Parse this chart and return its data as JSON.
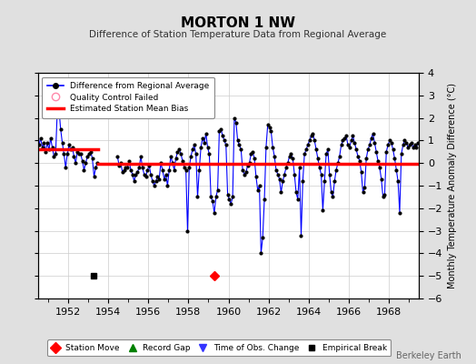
{
  "title": "MORTON 1 NW",
  "subtitle": "Difference of Station Temperature Data from Regional Average",
  "ylabel": "Monthly Temperature Anomaly Difference (°C)",
  "xlim": [
    1950.5,
    1969.5
  ],
  "ylim": [
    -6,
    4
  ],
  "yticks": [
    -6,
    -5,
    -4,
    -3,
    -2,
    -1,
    0,
    1,
    2,
    3,
    4
  ],
  "xticks": [
    1952,
    1954,
    1956,
    1958,
    1960,
    1962,
    1964,
    1966,
    1968
  ],
  "fig_bg": "#e0e0e0",
  "plot_bg": "#ffffff",
  "line_color": "#0000ff",
  "dot_color": "#000000",
  "bias_color": "#ff0000",
  "watermark": "Berkeley Earth",
  "segment1_bias": 0.6,
  "segment2_bias": -0.05,
  "segment1_start": 1950.5,
  "segment1_end": 1953.5,
  "segment2_start": 1953.5,
  "segment2_end": 1969.5,
  "station_move_x": 1959.3,
  "station_move_y": -5.0,
  "empirical_break_x": 1953.25,
  "empirical_break_y": -5.0,
  "gap_start": 1953.458,
  "gap_end": 1954.458,
  "data_x": [
    1950.542,
    1950.625,
    1950.708,
    1950.792,
    1950.875,
    1950.958,
    1951.042,
    1951.125,
    1951.208,
    1951.292,
    1951.375,
    1951.458,
    1951.542,
    1951.625,
    1951.708,
    1951.792,
    1951.875,
    1951.958,
    1952.042,
    1952.125,
    1952.208,
    1952.292,
    1952.375,
    1952.458,
    1952.542,
    1952.625,
    1952.708,
    1952.792,
    1952.875,
    1952.958,
    1953.042,
    1953.125,
    1953.208,
    1953.292,
    1953.375,
    1953.458,
    1954.458,
    1954.542,
    1954.625,
    1954.708,
    1954.792,
    1954.875,
    1954.958,
    1955.042,
    1955.125,
    1955.208,
    1955.292,
    1955.375,
    1955.458,
    1955.542,
    1955.625,
    1955.708,
    1955.792,
    1955.875,
    1955.958,
    1956.042,
    1956.125,
    1956.208,
    1956.292,
    1956.375,
    1956.458,
    1956.542,
    1956.625,
    1956.708,
    1956.792,
    1956.875,
    1956.958,
    1957.042,
    1957.125,
    1957.208,
    1957.292,
    1957.375,
    1957.458,
    1957.542,
    1957.625,
    1957.708,
    1957.792,
    1957.875,
    1957.958,
    1958.042,
    1958.125,
    1958.208,
    1958.292,
    1958.375,
    1958.458,
    1958.542,
    1958.625,
    1958.708,
    1958.792,
    1958.875,
    1958.958,
    1959.042,
    1959.125,
    1959.208,
    1959.292,
    1959.375,
    1959.458,
    1959.542,
    1959.625,
    1959.708,
    1959.792,
    1959.875,
    1959.958,
    1960.042,
    1960.125,
    1960.208,
    1960.292,
    1960.375,
    1960.458,
    1960.542,
    1960.625,
    1960.708,
    1960.792,
    1960.875,
    1960.958,
    1961.042,
    1961.125,
    1961.208,
    1961.292,
    1961.375,
    1961.458,
    1961.542,
    1961.625,
    1961.708,
    1961.792,
    1961.875,
    1961.958,
    1962.042,
    1962.125,
    1962.208,
    1962.292,
    1962.375,
    1962.458,
    1962.542,
    1962.625,
    1962.708,
    1962.792,
    1962.875,
    1962.958,
    1963.042,
    1963.125,
    1963.208,
    1963.292,
    1963.375,
    1963.458,
    1963.542,
    1963.625,
    1963.708,
    1963.792,
    1963.875,
    1963.958,
    1964.042,
    1964.125,
    1964.208,
    1964.292,
    1964.375,
    1964.458,
    1964.542,
    1964.625,
    1964.708,
    1964.792,
    1964.875,
    1964.958,
    1965.042,
    1965.125,
    1965.208,
    1965.292,
    1965.375,
    1965.458,
    1965.542,
    1965.625,
    1965.708,
    1965.792,
    1965.875,
    1965.958,
    1966.042,
    1966.125,
    1966.208,
    1966.292,
    1966.375,
    1966.458,
    1966.542,
    1966.625,
    1966.708,
    1966.792,
    1966.875,
    1966.958,
    1967.042,
    1967.125,
    1967.208,
    1967.292,
    1967.375,
    1967.458,
    1967.542,
    1967.625,
    1967.708,
    1967.792,
    1967.875,
    1967.958,
    1968.042,
    1968.125,
    1968.208,
    1968.292,
    1968.375,
    1968.458,
    1968.542,
    1968.625,
    1968.708,
    1968.792,
    1968.875,
    1968.958,
    1969.042,
    1969.125,
    1969.208,
    1969.292,
    1969.375,
    1969.458
  ],
  "data_y": [
    0.8,
    1.1,
    0.7,
    0.9,
    0.5,
    0.9,
    0.6,
    1.1,
    0.7,
    0.3,
    0.4,
    2.3,
    2.4,
    1.5,
    0.9,
    0.4,
    -0.2,
    0.4,
    0.8,
    0.6,
    0.7,
    0.3,
    0.0,
    0.5,
    0.4,
    0.4,
    0.1,
    -0.3,
    0.0,
    0.3,
    0.4,
    0.5,
    0.2,
    -0.6,
    -0.2,
    0.0,
    0.3,
    -0.1,
    0.0,
    -0.4,
    -0.3,
    -0.2,
    -0.2,
    0.1,
    -0.3,
    -0.5,
    -0.8,
    -0.5,
    -0.4,
    -0.2,
    0.3,
    -0.2,
    -0.5,
    -0.6,
    -0.3,
    -0.1,
    -0.5,
    -0.8,
    -1.0,
    -0.8,
    -0.6,
    -0.7,
    0.0,
    -0.3,
    -0.7,
    -0.5,
    -1.0,
    -0.3,
    0.3,
    0.0,
    -0.3,
    0.2,
    0.5,
    0.6,
    0.4,
    0.1,
    -0.2,
    -0.3,
    -3.0,
    -0.2,
    0.3,
    0.6,
    0.8,
    0.4,
    -1.5,
    -0.3,
    0.7,
    1.1,
    0.9,
    1.3,
    0.7,
    0.4,
    -1.5,
    -1.7,
    -2.2,
    -1.5,
    -1.2,
    1.4,
    1.5,
    1.2,
    1.0,
    0.8,
    -1.4,
    -1.6,
    -1.8,
    -1.5,
    2.0,
    1.8,
    1.0,
    0.8,
    0.6,
    -0.3,
    -0.5,
    -0.4,
    -0.1,
    0.0,
    0.4,
    0.5,
    0.2,
    -0.6,
    -1.2,
    -1.0,
    -4.0,
    -3.3,
    -1.6,
    0.7,
    1.7,
    1.6,
    1.4,
    0.7,
    0.3,
    -0.3,
    -0.5,
    -0.7,
    -1.3,
    -0.8,
    -0.5,
    -0.2,
    0.0,
    0.3,
    0.4,
    0.2,
    -0.5,
    -1.3,
    -1.6,
    -0.2,
    -3.2,
    -0.8,
    0.4,
    0.6,
    0.8,
    1.0,
    1.2,
    1.3,
    1.0,
    0.6,
    0.2,
    -0.2,
    -0.5,
    -2.1,
    -0.8,
    0.4,
    0.6,
    -0.5,
    -1.3,
    -1.5,
    -0.8,
    -0.3,
    0.0,
    0.3,
    0.8,
    1.0,
    1.1,
    1.2,
    0.8,
    0.7,
    1.0,
    1.2,
    0.9,
    0.6,
    0.3,
    0.1,
    -0.4,
    -1.3,
    -1.1,
    0.2,
    0.6,
    0.8,
    1.1,
    1.3,
    0.9,
    0.5,
    0.1,
    -0.2,
    -0.7,
    -1.5,
    -1.4,
    0.5,
    0.8,
    1.0,
    0.9,
    0.6,
    0.2,
    -0.3,
    -0.8,
    -2.2,
    0.4,
    0.8,
    1.0,
    0.9,
    0.7,
    0.8,
    0.9,
    0.7,
    0.8,
    0.7,
    0.9
  ]
}
